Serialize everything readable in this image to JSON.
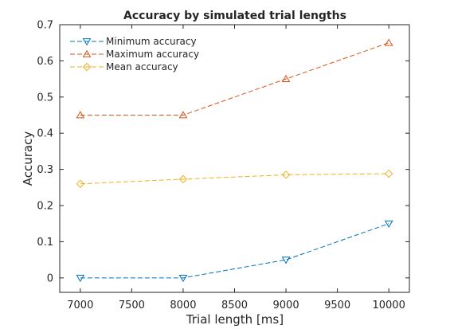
{
  "chart_data": {
    "type": "line",
    "title": "Accuracy by simulated trial lengths",
    "xlabel": "Trial length [ms]",
    "ylabel": "Accuracy",
    "x": [
      7000,
      8000,
      9000,
      10000
    ],
    "xlim": [
      6800,
      10200
    ],
    "ylim": [
      -0.04,
      0.7
    ],
    "xticks": [
      7000,
      7500,
      8000,
      8500,
      9000,
      9500,
      10000
    ],
    "yticks": [
      0,
      0.1,
      0.2,
      0.3,
      0.4,
      0.5,
      0.6,
      0.7
    ],
    "grid": false,
    "legend_location": "top-left",
    "series": [
      {
        "name": "Minimum accuracy",
        "values": [
          0.0,
          0.0,
          0.05,
          0.15
        ],
        "color": "#0072BD",
        "marker": "triangle-down"
      },
      {
        "name": "Maximum accuracy",
        "values": [
          0.45,
          0.45,
          0.55,
          0.65
        ],
        "color": "#D95319",
        "marker": "triangle-up"
      },
      {
        "name": "Mean accuracy",
        "values": [
          0.26,
          0.273,
          0.285,
          0.288
        ],
        "color": "#EDB120",
        "marker": "diamond"
      }
    ]
  }
}
